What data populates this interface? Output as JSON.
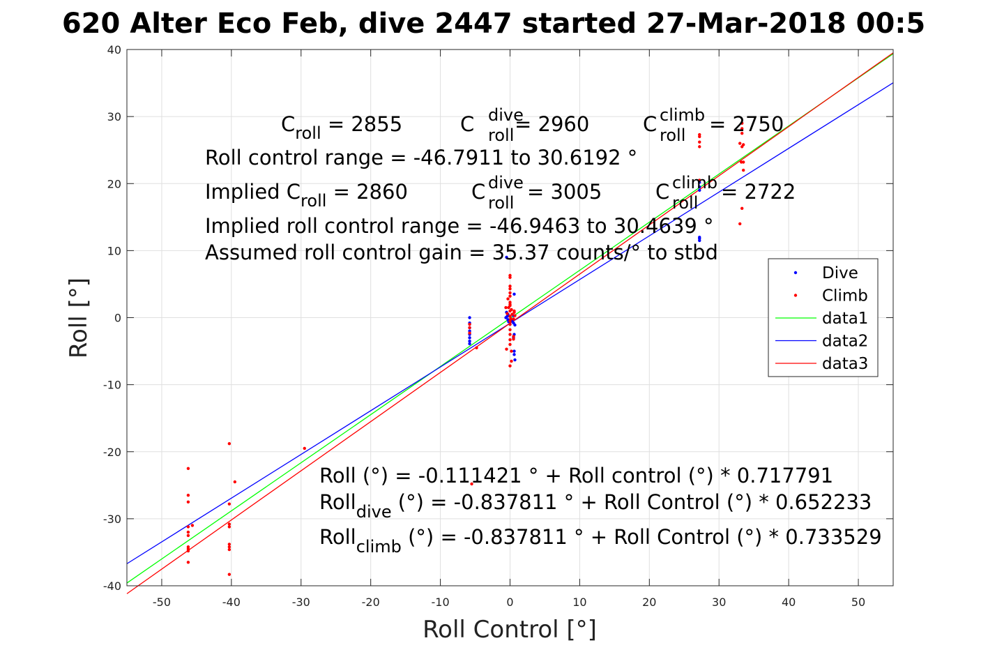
{
  "title": "620 Alter Eco Feb, dive 2447 started 27-Mar-2018 00:5",
  "chart_data": {
    "type": "scatter",
    "xlabel": "Roll Control [°]",
    "ylabel": "Roll [°]",
    "xlim": [
      -55,
      55
    ],
    "ylim": [
      -40,
      40
    ],
    "xticks": [
      -50,
      -40,
      -30,
      -20,
      -10,
      0,
      10,
      20,
      30,
      40,
      50
    ],
    "yticks": [
      -40,
      -30,
      -20,
      -10,
      0,
      10,
      20,
      30,
      40
    ],
    "grid": true,
    "legend_placement": "right",
    "series": [
      {
        "name": "Dive",
        "kind": "points",
        "color": "#0000ff",
        "points": [
          [
            -0.5,
            9.0
          ],
          [
            -0.5,
            0.8
          ],
          [
            -0.3,
            0.5
          ],
          [
            -0.4,
            0.2
          ],
          [
            -0.6,
            0.0
          ],
          [
            -0.3,
            -0.3
          ],
          [
            -0.2,
            -0.6
          ],
          [
            0.0,
            -1.0
          ],
          [
            0.3,
            -0.5
          ],
          [
            0.5,
            -0.8
          ],
          [
            0.7,
            -1.1
          ],
          [
            0.6,
            -2.5
          ],
          [
            0.5,
            -3.0
          ],
          [
            0.6,
            -5.0
          ],
          [
            0.6,
            -5.5
          ],
          [
            0.7,
            -6.3
          ],
          [
            0.6,
            3.5
          ],
          [
            0.5,
            0.3
          ],
          [
            -5.8,
            0.0
          ],
          [
            -5.8,
            -0.8
          ],
          [
            -5.8,
            -1.5
          ],
          [
            -5.8,
            -2.0
          ],
          [
            -5.8,
            -2.5
          ],
          [
            -5.8,
            -3.0
          ],
          [
            -5.8,
            -3.5
          ],
          [
            -5.8,
            -3.9
          ],
          [
            27.2,
            20.2
          ],
          [
            27.2,
            19.5
          ],
          [
            27.2,
            19.0
          ],
          [
            27.2,
            12.0
          ],
          [
            27.2,
            11.5
          ],
          [
            27.2,
            11.8
          ]
        ]
      },
      {
        "name": "Climb",
        "kind": "points",
        "color": "#ff0000",
        "points": [
          [
            -46.2,
            -22.5
          ],
          [
            -46.2,
            -26.5
          ],
          [
            -46.2,
            -27.5
          ],
          [
            -46.2,
            -31.2
          ],
          [
            -46.2,
            -32.0
          ],
          [
            -46.2,
            -32.5
          ],
          [
            -46.2,
            -34.2
          ],
          [
            -46.2,
            -34.5
          ],
          [
            -46.2,
            -34.8
          ],
          [
            -46.2,
            -36.5
          ],
          [
            -45.6,
            -31.0
          ],
          [
            -40.3,
            -18.8
          ],
          [
            -40.3,
            -27.8
          ],
          [
            -40.3,
            -30.8
          ],
          [
            -40.3,
            -31.2
          ],
          [
            -40.3,
            -33.8
          ],
          [
            -40.3,
            -34.2
          ],
          [
            -40.3,
            -34.6
          ],
          [
            -40.3,
            -38.3
          ],
          [
            -39.5,
            -24.5
          ],
          [
            -29.5,
            -19.5
          ],
          [
            -5.5,
            -24.8
          ],
          [
            -5.8,
            -1.0
          ],
          [
            -5.8,
            -1.5
          ],
          [
            -5.8,
            -2.3
          ],
          [
            -4.8,
            -4.5
          ],
          [
            0.0,
            6.3
          ],
          [
            0.0,
            6.0
          ],
          [
            0.0,
            4.7
          ],
          [
            0.0,
            4.3
          ],
          [
            0.0,
            3.7
          ],
          [
            0.0,
            3.2
          ],
          [
            -0.3,
            2.8
          ],
          [
            0.0,
            2.3
          ],
          [
            0.0,
            1.8
          ],
          [
            -0.2,
            1.5
          ],
          [
            0.2,
            1.2
          ],
          [
            0.0,
            1.0
          ],
          [
            -0.4,
            0.6
          ],
          [
            0.3,
            0.5
          ],
          [
            0.0,
            0.2
          ],
          [
            0.1,
            -0.2
          ],
          [
            0.0,
            -0.5
          ],
          [
            0.0,
            -1.0
          ],
          [
            0.0,
            -1.8
          ],
          [
            0.0,
            -2.5
          ],
          [
            0.0,
            -3.3
          ],
          [
            0.0,
            -4.0
          ],
          [
            0.0,
            -7.2
          ],
          [
            -0.5,
            -4.7
          ],
          [
            0.5,
            -3.2
          ],
          [
            0.5,
            -2.8
          ],
          [
            0.5,
            -0.2
          ],
          [
            0.6,
            0.8
          ],
          [
            0.6,
            1.0
          ],
          [
            0.7,
            0.3
          ],
          [
            0.2,
            -5.0
          ],
          [
            0.2,
            -6.5
          ],
          [
            -0.6,
            1.5
          ],
          [
            0.0,
            2.0
          ],
          [
            27.2,
            27.3
          ],
          [
            27.2,
            27.0
          ],
          [
            27.2,
            26.2
          ],
          [
            27.2,
            25.5
          ],
          [
            27.2,
            20.5
          ],
          [
            33.0,
            26.0
          ],
          [
            33.3,
            29.0
          ],
          [
            33.3,
            28.2
          ],
          [
            33.3,
            27.5
          ],
          [
            33.3,
            25.5
          ],
          [
            33.2,
            23.2
          ],
          [
            33.5,
            25.8
          ],
          [
            33.5,
            23.2
          ],
          [
            33.5,
            22.0
          ],
          [
            33.3,
            16.3
          ],
          [
            33.0,
            14.0
          ]
        ]
      },
      {
        "name": "data1",
        "kind": "line",
        "color": "#00ff00",
        "intercept": -0.111421,
        "slope": 0.717791
      },
      {
        "name": "data2",
        "kind": "line",
        "color": "#0000ff",
        "intercept": -0.837811,
        "slope": 0.652233
      },
      {
        "name": "data3",
        "kind": "line",
        "color": "#ff0000",
        "intercept": -0.837811,
        "slope": 0.733529
      }
    ],
    "annotations": {
      "croll_row": {
        "croll_base": "C",
        "croll_sub": "roll",
        "croll_val": " = 2855",
        "cdive_base": "C",
        "cdive_sup": "dive",
        "cdive_sub": "roll",
        "cdive_val": " = 2960",
        "cclimb_base": "C",
        "cclimb_sup": "climb",
        "cclimb_sub": "roll",
        "cclimb_val": " = 2750"
      },
      "range_line": "Roll control range = -46.7911 to 30.6192 °",
      "implied_row": {
        "croll_base": "Implied C",
        "croll_sub": "roll",
        "croll_val": " = 2860",
        "cdive_base": "C",
        "cdive_sup": "dive",
        "cdive_sub": "roll",
        "cdive_val": " = 3005",
        "cclimb_base": "C",
        "cclimb_sup": "climb",
        "cclimb_sub": "roll",
        "cclimb_val": " = 2722"
      },
      "implied_range_line": "Implied roll control range = -46.9463 to 30.4639 °",
      "gain_line": "Assumed roll control gain = 35.37 counts/° to stbd",
      "fit_all": "Roll (°) = -0.111421 ° + Roll control (°) * 0.717791",
      "fit_dive": {
        "base": "Roll",
        "sub": "dive",
        "rest": " (°) = -0.837811 ° + Roll Control (°) * 0.652233"
      },
      "fit_climb": {
        "base": "Roll",
        "sub": "climb",
        "rest": " (°) = -0.837811 ° + Roll Control (°) * 0.733529"
      }
    }
  }
}
